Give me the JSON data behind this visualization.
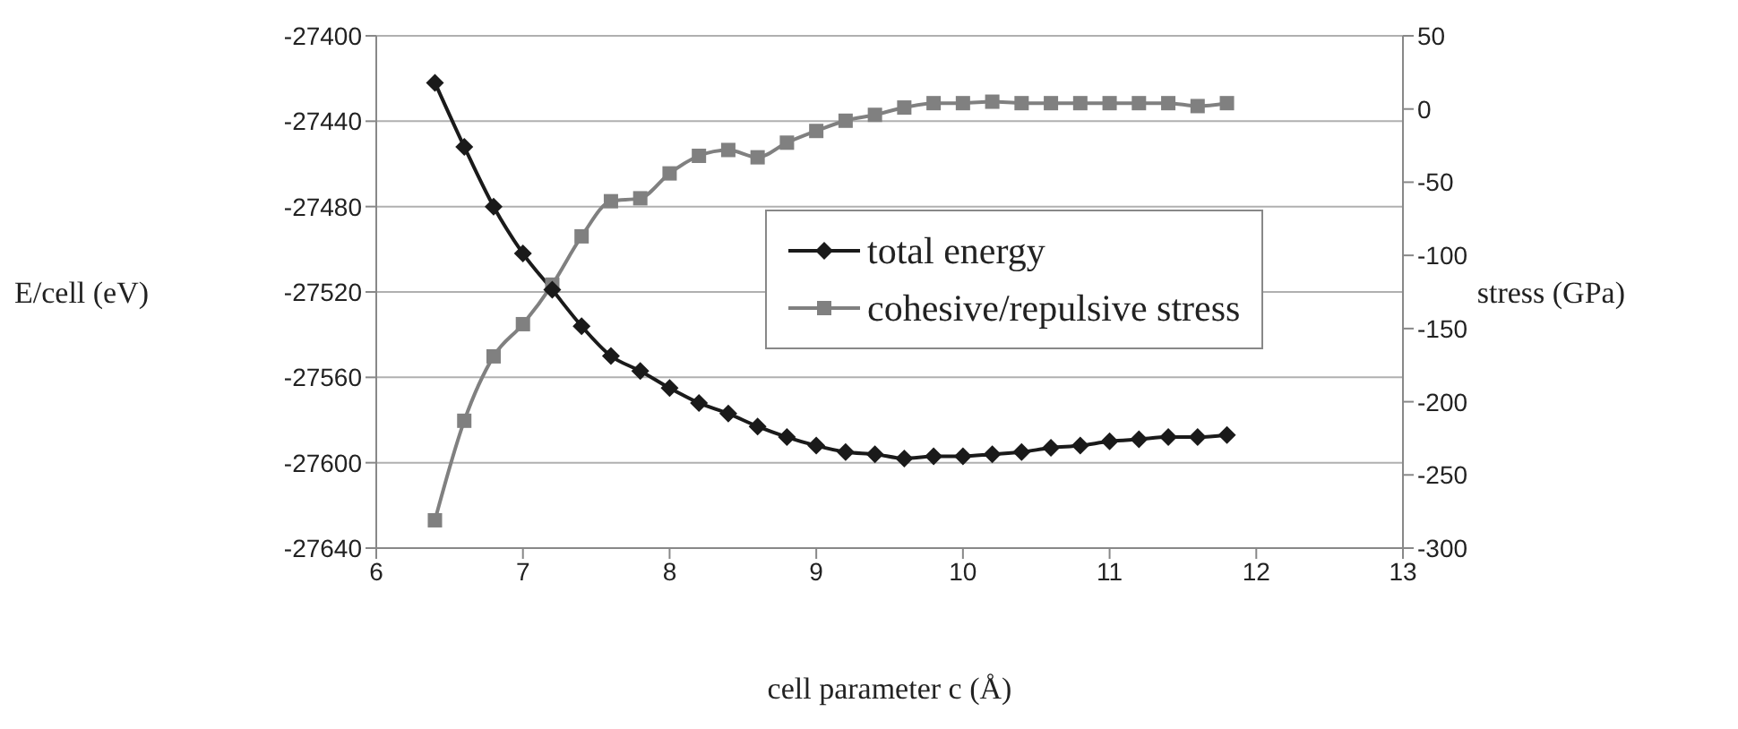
{
  "chart_data": {
    "type": "line",
    "xlabel": "cell parameter c (Å)",
    "ylabel": "E/cell (eV)",
    "y2label": "stress (GPa)",
    "x": [
      6.4,
      6.6,
      6.8,
      7.0,
      7.2,
      7.4,
      7.6,
      7.8,
      8.0,
      8.2,
      8.4,
      8.6,
      8.8,
      9.0,
      9.2,
      9.4,
      9.6,
      9.8,
      10.0,
      10.2,
      10.4,
      10.6,
      10.8,
      11.0,
      11.2,
      11.4,
      11.6,
      11.8
    ],
    "series": [
      {
        "name": "total energy",
        "color": "#1a1a1a",
        "marker": "diamond",
        "values": [
          -27422,
          -27452,
          -27480,
          -27502,
          -27519,
          -27536,
          -27550,
          -27557,
          -27565,
          -27572,
          -27577,
          -27583,
          -27588,
          -27592,
          -27595,
          -27596,
          -27598,
          -27597,
          -27597,
          -27596,
          -27595,
          -27593,
          -27592,
          -27590,
          -27589,
          -27588,
          -27588,
          -27587
        ]
      },
      {
        "name": "cohesive/repulsive stress",
        "color": "#808080",
        "marker": "square",
        "axis": "y2",
        "values": [
          -281,
          -213,
          -169,
          -147,
          -120,
          -87,
          -63,
          -61,
          -44,
          -32,
          -28,
          -33,
          -23,
          -15,
          -8,
          -4,
          1,
          4,
          4,
          5,
          4,
          4,
          4,
          4,
          4,
          4,
          2,
          4
        ]
      }
    ],
    "xlim": [
      6,
      13
    ],
    "xticks": [
      6,
      7,
      8,
      9,
      10,
      11,
      12,
      13
    ],
    "ylim": [
      -27640,
      -27400
    ],
    "yticks": [
      -27640,
      -27600,
      -27560,
      -27520,
      -27480,
      -27440,
      -27400
    ],
    "y2lim": [
      -300,
      50
    ],
    "y2ticks": [
      -300,
      -250,
      -200,
      -150,
      -100,
      -50,
      0,
      50
    ],
    "grid": "y",
    "legend": "right",
    "line_style": "solid"
  }
}
